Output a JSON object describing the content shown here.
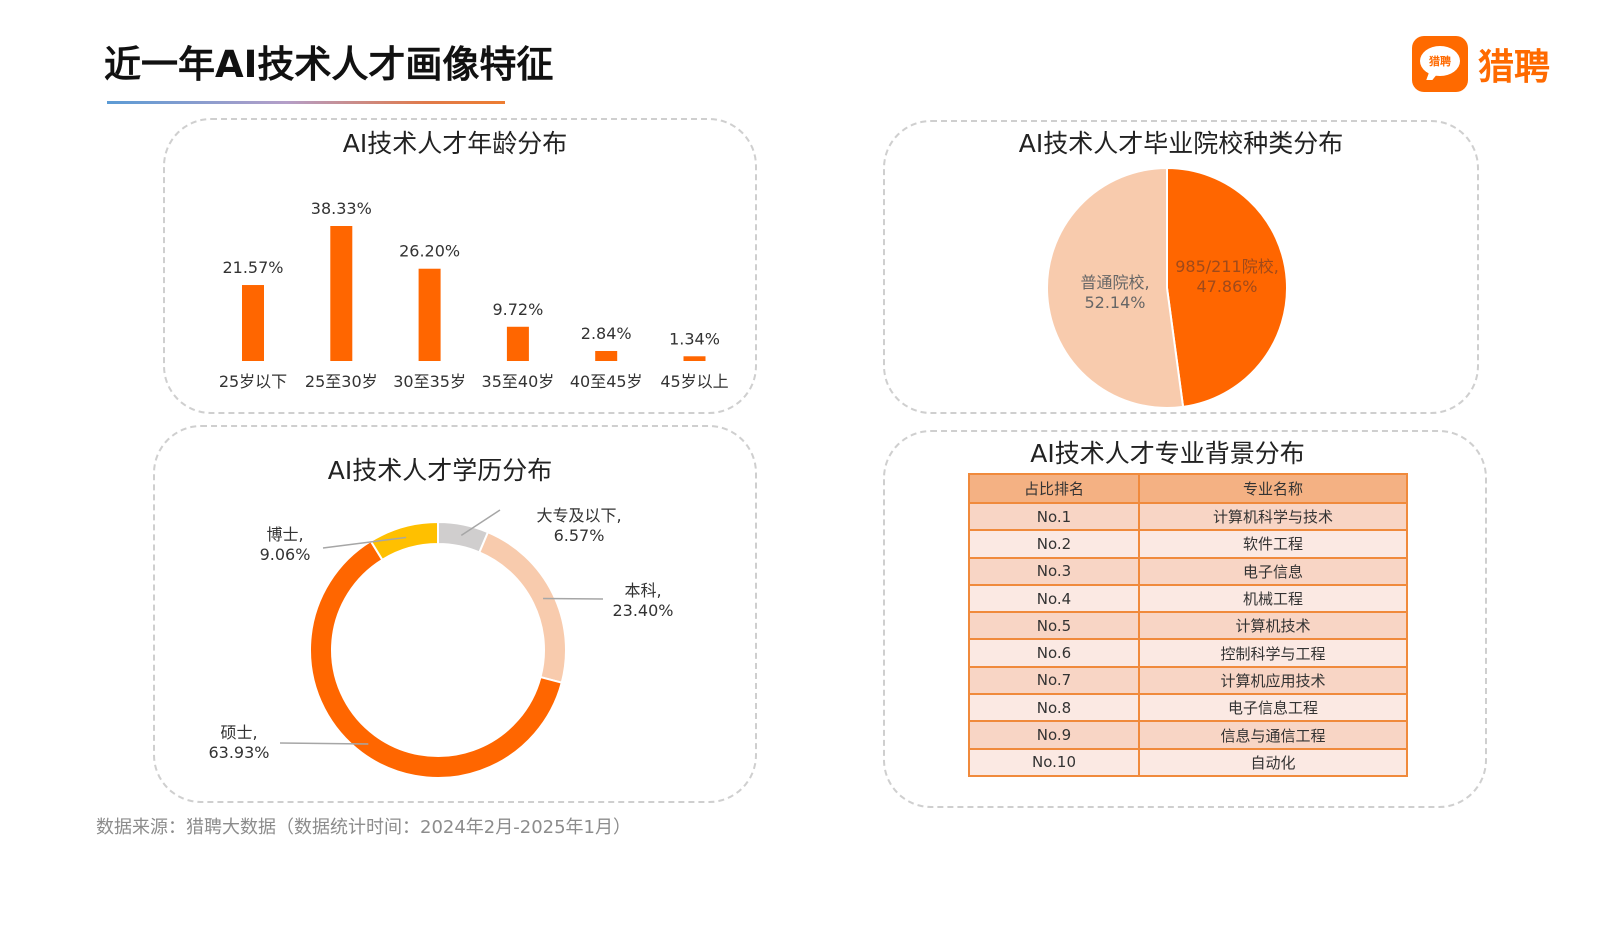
{
  "header": {
    "title": "近一年AI技术人才画像特征",
    "logo_badge_text": "猎聘",
    "logo_text": "猎聘",
    "brand_color": "#ff6a00"
  },
  "footer": {
    "source": "数据来源：猎聘大数据（数据统计时间：2024年2月-2025年1月）"
  },
  "chart_data": [
    {
      "type": "bar",
      "title": "AI技术人才年龄分布",
      "categories": [
        "25岁以下",
        "25至30岁",
        "30至35岁",
        "35至40岁",
        "40至45岁",
        "45岁以上"
      ],
      "values": [
        21.57,
        38.33,
        26.2,
        9.72,
        2.84,
        1.34
      ],
      "value_labels": [
        "21.57%",
        "38.33%",
        "26.20%",
        "9.72%",
        "2.84%",
        "1.34%"
      ],
      "unit": "%",
      "xlabel": "",
      "ylabel": "",
      "ylim": [
        0,
        40
      ],
      "grid": false,
      "color": "#ff6600"
    },
    {
      "type": "pie",
      "title": "AI技术人才毕业院校种类分布",
      "slices": [
        {
          "label": "985/211院校",
          "value": 47.86,
          "value_label": "47.86%",
          "color": "#ff6600"
        },
        {
          "label": "普通院校",
          "value": 52.14,
          "value_label": "52.14%",
          "color": "#f8cbad"
        }
      ],
      "legend": "none"
    },
    {
      "type": "pie",
      "donut": true,
      "title": "AI技术人才学历分布",
      "slices": [
        {
          "label": "大专及以下",
          "value": 6.57,
          "value_label": "6.57%",
          "color": "#d0cece"
        },
        {
          "label": "本科",
          "value": 23.4,
          "value_label": "23.40%",
          "color": "#f8cbad"
        },
        {
          "label": "硕士",
          "value": 63.93,
          "value_label": "63.93%",
          "color": "#ff6600"
        },
        {
          "label": "博士",
          "value": 9.06,
          "value_label": "9.06%",
          "color": "#ffc000"
        }
      ],
      "legend": "none"
    },
    {
      "type": "table",
      "title": "AI技术人才专业背景分布",
      "columns": [
        "占比排名",
        "专业名称"
      ],
      "rows": [
        [
          "No.1",
          "计算机科学与技术"
        ],
        [
          "No.2",
          "软件工程"
        ],
        [
          "No.3",
          "电子信息"
        ],
        [
          "No.4",
          "机械工程"
        ],
        [
          "No.5",
          "计算机技术"
        ],
        [
          "No.6",
          "控制科学与工程"
        ],
        [
          "No.7",
          "计算机应用技术"
        ],
        [
          "No.8",
          "电子信息工程"
        ],
        [
          "No.9",
          "信息与通信工程"
        ],
        [
          "No.10",
          "自动化"
        ]
      ]
    }
  ]
}
